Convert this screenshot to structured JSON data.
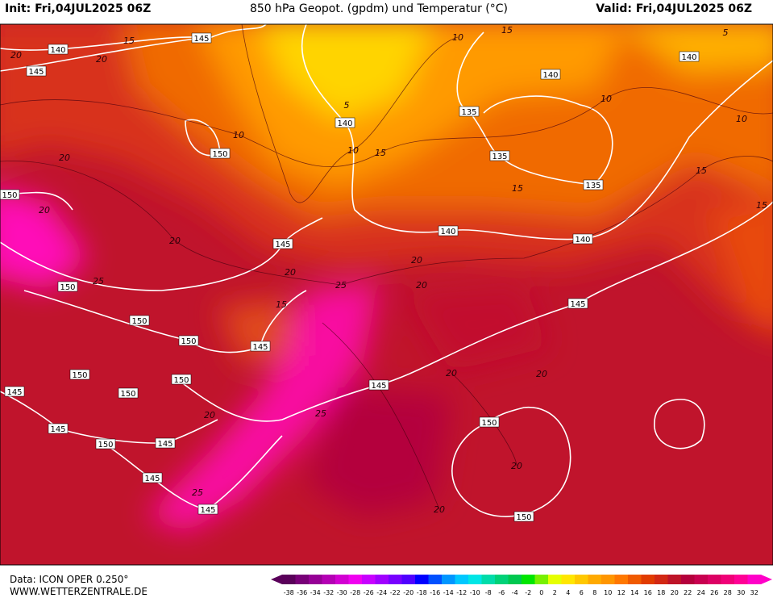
{
  "header": {
    "init": "Init: Fri,04JUL2025 06Z",
    "title": "850 hPa Geopot. (gpdm) und Temperatur (°C)",
    "valid": "Valid: Fri,04JUL2025 06Z"
  },
  "footer": {
    "model": "Data: ICON OPER 0.250°",
    "site": "WWW.WETTERZENTRALE.DE"
  },
  "legend": {
    "ticks": [
      -38,
      -36,
      -34,
      -32,
      -30,
      -28,
      -26,
      -24,
      -22,
      -20,
      -18,
      -16,
      -14,
      -12,
      -10,
      -8,
      -6,
      -4,
      -2,
      0,
      2,
      4,
      6,
      8,
      10,
      12,
      14,
      16,
      18,
      20,
      22,
      24,
      26,
      28,
      30,
      32
    ],
    "colors": [
      "#5a005a",
      "#780078",
      "#960096",
      "#b400b4",
      "#d200d2",
      "#f000f0",
      "#c800ff",
      "#a000ff",
      "#7800ff",
      "#5000ff",
      "#0000ff",
      "#0050ff",
      "#0096ff",
      "#00c8ff",
      "#00e6e6",
      "#00dcaa",
      "#00d278",
      "#00c850",
      "#00e600",
      "#78f000",
      "#e6ff00",
      "#ffe600",
      "#ffc800",
      "#ffaa00",
      "#ff9600",
      "#ff7800",
      "#f05a00",
      "#e13c00",
      "#d22814",
      "#be1428",
      "#b4003c",
      "#c80050",
      "#dc0064",
      "#f00078",
      "#ff0096",
      "#ff00c8"
    ]
  },
  "geopotential_labels": [
    145,
    140,
    145,
    140,
    140,
    135,
    140,
    150,
    135,
    135,
    150,
    140,
    140,
    145,
    150,
    145,
    150,
    150,
    145,
    145,
    150,
    150,
    150,
    145,
    145,
    150,
    145,
    150,
    145,
    145,
    150
  ],
  "temperature_labels": [
    15,
    15,
    10,
    5,
    5,
    10,
    10,
    15,
    15,
    10,
    10,
    15,
    15,
    20,
    20,
    20,
    20,
    20,
    25,
    20,
    25,
    15,
    25,
    20,
    20,
    20,
    20,
    25,
    20,
    20,
    20
  ]
}
